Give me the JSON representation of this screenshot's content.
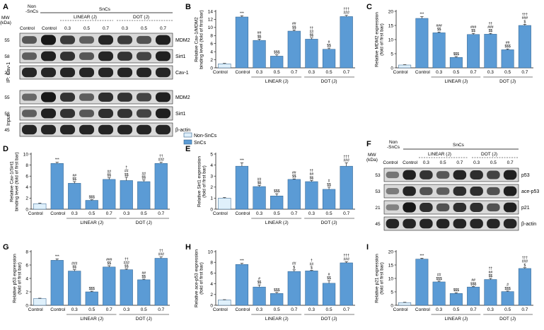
{
  "figure": {
    "panel_labels": [
      "A",
      "B",
      "C",
      "D",
      "E",
      "F",
      "G",
      "H",
      "I"
    ]
  },
  "colors": {
    "control": "#dff0fb",
    "sncs": "#5b9bd5",
    "edge": "#2e5f8a",
    "band": "#111111"
  },
  "legend": {
    "non_sncs": "Non-SnCs",
    "sncs": "SnCs"
  },
  "blot_a": {
    "header_non": [
      "Non",
      "-SnCs"
    ],
    "header_sncs": "SnCs",
    "mw_label": "MW",
    "kda_label": "(kDa)",
    "lanes": [
      "Control",
      "Control",
      "0.3",
      "0.5",
      "0.7",
      "0.3",
      "0.5",
      "0.7"
    ],
    "group_linear": "LINEAR (J)",
    "group_dot": "DOT (J)",
    "ip_label": "IP: Cav-1",
    "input_label": "Input",
    "rows": [
      {
        "mw": "55",
        "label": "MDM2",
        "section": "ip",
        "intensity": [
          0.55,
          1,
          0.75,
          0.5,
          0.9,
          0.75,
          0.6,
          0.95
        ]
      },
      {
        "mw": "58",
        "label": "Sirt1",
        "section": "ip",
        "intensity": [
          0.5,
          0.95,
          0.8,
          0.55,
          0.9,
          0.8,
          0.7,
          0.95
        ]
      },
      {
        "mw": "22",
        "label": "Cav-1",
        "section": "ip",
        "intensity": [
          0.9,
          0.9,
          0.9,
          0.9,
          0.9,
          0.9,
          0.9,
          0.9
        ]
      },
      {
        "mw": "55",
        "label": "MDM2",
        "section": "input",
        "intensity": [
          0.45,
          1,
          0.8,
          0.5,
          0.85,
          0.8,
          0.7,
          0.95
        ]
      },
      {
        "mw": "58",
        "label": "Sirt1",
        "section": "input",
        "intensity": [
          0.5,
          0.95,
          0.8,
          0.55,
          0.85,
          0.8,
          0.7,
          0.95
        ]
      },
      {
        "mw": "45",
        "label": "β-actin",
        "section": "input",
        "intensity": [
          0.9,
          0.9,
          0.9,
          0.9,
          0.9,
          0.9,
          0.9,
          0.9
        ]
      }
    ]
  },
  "blot_f": {
    "header_non": [
      "Non",
      "-SnCs"
    ],
    "header_sncs": "SnCs",
    "mw_label": "MW",
    "kda_label": "(kDa)",
    "lanes": [
      "Control",
      "Control",
      "0.3",
      "0.5",
      "0.7",
      "0.3",
      "0.5",
      "0.7"
    ],
    "group_linear": "LINEAR (J)",
    "group_dot": "DOT (J)",
    "rows": [
      {
        "mw": "53",
        "label": "p53",
        "intensity": [
          0.35,
          0.95,
          0.8,
          0.55,
          0.9,
          0.85,
          0.7,
          0.95
        ]
      },
      {
        "mw": "53",
        "label": "ace-p53",
        "intensity": [
          0.3,
          0.9,
          0.6,
          0.5,
          0.85,
          0.85,
          0.6,
          0.95
        ]
      },
      {
        "mw": "21",
        "label": "p21",
        "intensity": [
          0.25,
          1,
          0.85,
          0.6,
          0.85,
          0.85,
          0.6,
          0.95
        ]
      },
      {
        "mw": "45",
        "label": "β-actin",
        "intensity": [
          0.9,
          0.9,
          0.9,
          0.9,
          0.9,
          0.9,
          0.9,
          0.9
        ]
      }
    ]
  },
  "chart_data": [
    {
      "id": "B",
      "type": "bar",
      "ylabel": [
        "Relative Cav-1/MDM2",
        "binding level (fold of first bar)"
      ],
      "ylim": [
        0,
        14
      ],
      "yticks": [
        0,
        2,
        4,
        6,
        8,
        10,
        12,
        14
      ],
      "categories": [
        "Control",
        "Control",
        "0.3",
        "0.5",
        "0.7",
        "0.3",
        "0.5",
        "0.7"
      ],
      "values": [
        1.0,
        12.6,
        6.8,
        2.9,
        9.1,
        7.1,
        4.6,
        12.7
      ],
      "errors": [
        0.1,
        0.3,
        0.3,
        0.3,
        0.3,
        0.3,
        0.3,
        0.3
      ],
      "annotations": [
        [],
        [
          "***"
        ],
        [
          "##",
          "$$"
        ],
        [
          "$$$"
        ],
        [
          "##",
          "$$"
        ],
        [
          "††",
          "##",
          "$$"
        ],
        [
          "#",
          "$$"
        ],
        [
          "†††",
          "###"
        ]
      ],
      "groups": [
        "LINEAR (J)",
        "DOT (J)"
      ]
    },
    {
      "id": "C",
      "type": "bar",
      "ylabel": [
        "Relative MDM2 expression",
        "(fold of first bar)"
      ],
      "ylim": [
        0,
        20
      ],
      "yticks": [
        0,
        5,
        10,
        15,
        20
      ],
      "categories": [
        "Control",
        "Control",
        "0.3",
        "0.5",
        "0.7",
        "0.3",
        "0.5",
        "0.7"
      ],
      "values": [
        1.0,
        17.5,
        12.4,
        3.7,
        11.8,
        11.9,
        6.4,
        15.0
      ],
      "errors": [
        0.1,
        0.6,
        0.3,
        0.3,
        0.4,
        0.3,
        0.3,
        0.4
      ],
      "annotations": [
        [],
        [
          "***"
        ],
        [
          "###",
          "$$"
        ],
        [
          "$$$"
        ],
        [
          "###",
          "$$"
        ],
        [
          "††",
          "###",
          "$$"
        ],
        [
          "##",
          "$$$"
        ],
        [
          "†††",
          "###",
          "$"
        ]
      ],
      "groups": [
        "LINEAR (J)",
        "DOT (J)"
      ]
    },
    {
      "id": "D",
      "type": "bar",
      "ylabel": [
        "Relative Cav-1/Sirt1",
        "binding level (fold of first bar)"
      ],
      "ylim": [
        0,
        10
      ],
      "yticks": [
        0,
        2,
        4,
        6,
        8,
        10
      ],
      "categories": [
        "Control",
        "Control",
        "0.3",
        "0.5",
        "0.7",
        "0.3",
        "0.5",
        "0.7"
      ],
      "values": [
        1.0,
        8.3,
        4.7,
        1.6,
        5.4,
        5.2,
        5.0,
        8.3
      ],
      "errors": [
        0.1,
        0.2,
        0.3,
        0.1,
        0.3,
        0.6,
        0.3,
        0.2
      ],
      "annotations": [
        [],
        [
          "***"
        ],
        [
          "##",
          "$$"
        ],
        [
          "$$$"
        ],
        [
          "##",
          "$$"
        ],
        [
          "†",
          "##",
          "$$"
        ],
        [
          "##",
          "$$"
        ],
        [
          "††",
          "###"
        ]
      ],
      "groups": [
        "LINEAR (J)",
        "DOT (J)"
      ]
    },
    {
      "id": "E",
      "type": "bar",
      "ylabel": [
        "Relative Sirt1 expression",
        "(fold of first bar)"
      ],
      "ylim": [
        0,
        5
      ],
      "yticks": [
        0,
        1,
        2,
        3,
        4,
        5
      ],
      "categories": [
        "Control",
        "Control",
        "0.3",
        "0.5",
        "0.7",
        "0.3",
        "0.5",
        "0.7"
      ],
      "values": [
        1.0,
        3.9,
        2.05,
        1.2,
        2.7,
        2.5,
        1.8,
        3.9
      ],
      "errors": [
        0.05,
        0.3,
        0.1,
        0.2,
        0.05,
        0.1,
        0.2,
        0.3
      ],
      "annotations": [
        [],
        [
          "***"
        ],
        [
          "##",
          "$$"
        ],
        [
          "$$$"
        ],
        [
          "##",
          "$$"
        ],
        [
          "††",
          "##",
          "$$"
        ],
        [
          "#",
          "$$"
        ],
        [
          "†††",
          "###"
        ]
      ],
      "groups": [
        "LINEAR (J)",
        "DOT (J)"
      ]
    },
    {
      "id": "G",
      "type": "bar",
      "ylabel": [
        "Relative p53 expression",
        "(fold of first bar)"
      ],
      "ylim": [
        0,
        8
      ],
      "yticks": [
        0,
        2,
        4,
        6,
        8
      ],
      "categories": [
        "Control",
        "Control",
        "0.3",
        "0.5",
        "0.7",
        "0.3",
        "0.5",
        "0.7"
      ],
      "values": [
        1.0,
        6.7,
        5.1,
        2.0,
        5.7,
        5.3,
        3.8,
        7.0
      ],
      "errors": [
        0.05,
        0.2,
        0.2,
        0.1,
        0.2,
        0.1,
        0.1,
        0.2
      ],
      "annotations": [
        [],
        [
          "***"
        ],
        [
          "###",
          "$$"
        ],
        [
          "$$$"
        ],
        [
          "###",
          "$$"
        ],
        [
          "††",
          "###",
          "$$"
        ],
        [
          "##",
          "$$"
        ],
        [
          "††",
          "###"
        ]
      ],
      "groups": [
        "LINEAR (J)",
        "DOT (J)"
      ]
    },
    {
      "id": "H",
      "type": "bar",
      "ylabel": [
        "Relative ace-p53 expression",
        "(fold of first bar)"
      ],
      "ylim": [
        0,
        10
      ],
      "yticks": [
        0,
        2,
        4,
        6,
        8,
        10
      ],
      "categories": [
        "Control",
        "Control",
        "0.3",
        "0.5",
        "0.7",
        "0.3",
        "0.5",
        "0.7"
      ],
      "values": [
        1.0,
        7.6,
        3.4,
        2.2,
        6.3,
        6.4,
        4.1,
        7.9
      ],
      "errors": [
        0.05,
        0.2,
        0.4,
        0.2,
        0.3,
        0.1,
        0.5,
        0.2
      ],
      "annotations": [
        [],
        [
          "***"
        ],
        [
          "#",
          "$$"
        ],
        [
          "$$$"
        ],
        [
          "##",
          "$"
        ],
        [
          "†",
          "##",
          "$"
        ],
        [
          "#",
          "$$"
        ],
        [
          "†††",
          "###"
        ]
      ],
      "groups": [
        "LINEAR (J)",
        "DOT (J)"
      ]
    },
    {
      "id": "I",
      "type": "bar",
      "ylabel": [
        "Relative p21 expression",
        "(fold of first bar)"
      ],
      "ylim": [
        0,
        20
      ],
      "yticks": [
        0,
        5,
        10,
        15,
        20
      ],
      "categories": [
        "Control",
        "Control",
        "0.3",
        "0.5",
        "0.7",
        "0.3",
        "0.5",
        "0.7"
      ],
      "values": [
        1.0,
        17.2,
        8.7,
        4.4,
        6.8,
        9.6,
        5.1,
        13.7
      ],
      "errors": [
        0.1,
        0.3,
        0.3,
        0.3,
        0.2,
        0.4,
        0.2,
        0.3
      ],
      "annotations": [
        [],
        [
          "***"
        ],
        [
          "##",
          "$$$"
        ],
        [
          "$$$"
        ],
        [
          "##",
          "$$$"
        ],
        [
          "††",
          "##",
          "$$"
        ],
        [
          "#",
          "$$$"
        ],
        [
          "†††",
          "###",
          "$"
        ]
      ],
      "groups": [
        "LINEAR (J)",
        "DOT (J)"
      ]
    }
  ]
}
